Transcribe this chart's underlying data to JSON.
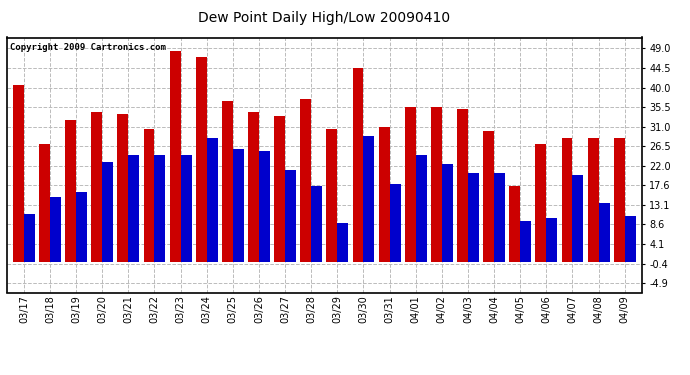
{
  "title": "Dew Point Daily High/Low 20090410",
  "copyright": "Copyright 2009 Cartronics.com",
  "dates": [
    "03/17",
    "03/18",
    "03/19",
    "03/20",
    "03/21",
    "03/22",
    "03/23",
    "03/24",
    "03/25",
    "03/26",
    "03/27",
    "03/28",
    "03/29",
    "03/30",
    "03/31",
    "04/01",
    "04/02",
    "04/03",
    "04/04",
    "04/05",
    "04/06",
    "04/07",
    "04/08",
    "04/09"
  ],
  "highs": [
    40.5,
    27.0,
    32.5,
    34.5,
    34.0,
    30.5,
    48.5,
    47.0,
    37.0,
    34.5,
    33.5,
    37.5,
    30.5,
    44.5,
    31.0,
    35.5,
    35.5,
    35.0,
    30.0,
    17.5,
    27.0,
    28.5,
    28.5,
    28.5
  ],
  "lows": [
    11.0,
    15.0,
    16.0,
    23.0,
    24.5,
    24.5,
    24.5,
    28.5,
    26.0,
    25.5,
    21.0,
    17.5,
    9.0,
    29.0,
    18.0,
    24.5,
    22.5,
    20.5,
    20.5,
    9.5,
    10.0,
    20.0,
    13.5,
    10.5
  ],
  "high_color": "#cc0000",
  "low_color": "#0000cc",
  "bg_color": "#ffffff",
  "grid_color": "#bbbbbb",
  "yticks": [
    -4.9,
    -0.4,
    4.1,
    8.6,
    13.1,
    17.6,
    22.0,
    26.5,
    31.0,
    35.5,
    40.0,
    44.5,
    49.0
  ],
  "ylim": [
    -7.0,
    51.5
  ],
  "bar_width": 0.42
}
